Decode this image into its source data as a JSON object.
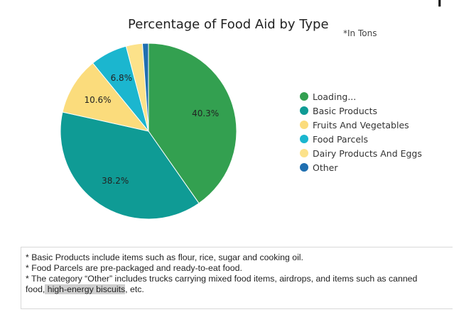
{
  "header": {
    "corner_glyph": "F"
  },
  "chart_data": {
    "type": "pie",
    "title": "Percentage of Food Aid by Type",
    "subtitle": "*In Tons",
    "legend_position": "right",
    "start_angle_deg": 0,
    "direction": "clockwise",
    "slices": [
      {
        "name": "Loading...",
        "value": 40.3,
        "label": "40.3%",
        "color": "#33a050"
      },
      {
        "name": "Basic Products",
        "value": 38.2,
        "label": "38.2%",
        "color": "#0f9b95"
      },
      {
        "name": "Fruits And Vegetables",
        "value": 10.6,
        "label": "10.6%",
        "color": "#fbdc7c"
      },
      {
        "name": "Food Parcels",
        "value": 6.8,
        "label": "6.8%",
        "color": "#1bb6cf"
      },
      {
        "name": "Dairy Products And Eggs",
        "value": 3.0,
        "label": "",
        "color": "#fce28a"
      },
      {
        "name": "Other",
        "value": 1.1,
        "label": "",
        "color": "#1f6fb0"
      }
    ]
  },
  "notes": {
    "line1": "* Basic Products include items such as flour, rice, sugar and cooking oil.",
    "line2": "* Food Parcels are pre-packaged and ready-to-eat food.",
    "line3": "* The category “Other” includes trucks carrying mixed food items, airdrops, and items such as canned",
    "line4_prefix": "food,",
    "line4_highlight": " high-energy biscuits",
    "line4_suffix": ", etc."
  }
}
